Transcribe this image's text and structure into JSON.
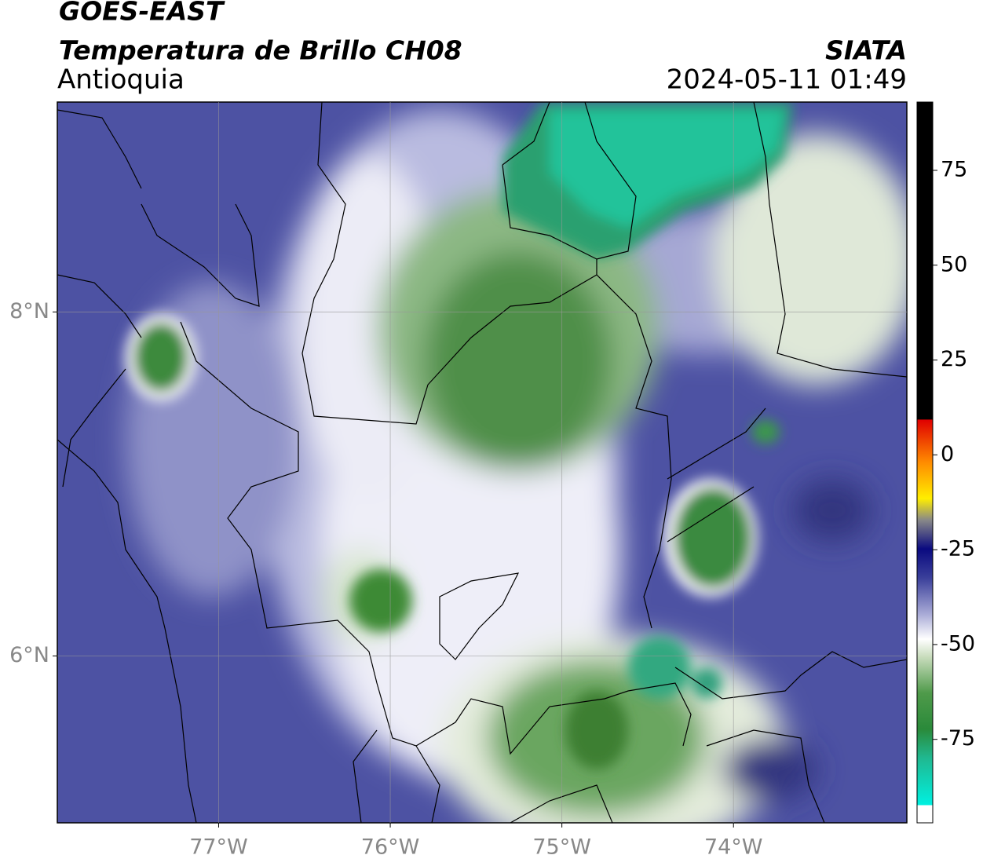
{
  "header": {
    "title": "GOES-EAST",
    "subtitle": "Temperatura de Brillo CH08",
    "region": "Antioquia",
    "source": "SIATA",
    "datetime": "2024-05-11 01:49"
  },
  "map": {
    "xlim": [
      -77.94,
      -72.99
    ],
    "ylim": [
      5.03,
      9.22
    ],
    "xticks": [
      {
        "value": -77,
        "label": "77°W"
      },
      {
        "value": -76,
        "label": "76°W"
      },
      {
        "value": -75,
        "label": "75°W"
      },
      {
        "value": -74,
        "label": "74°W"
      }
    ],
    "yticks": [
      {
        "value": 6,
        "label": "6°N"
      },
      {
        "value": 8,
        "label": "8°N"
      }
    ],
    "grid": true
  },
  "colorbar": {
    "lim": [
      -97,
      93
    ],
    "ticks": [
      -75,
      -50,
      -25,
      0,
      25,
      50,
      75
    ]
  }
}
